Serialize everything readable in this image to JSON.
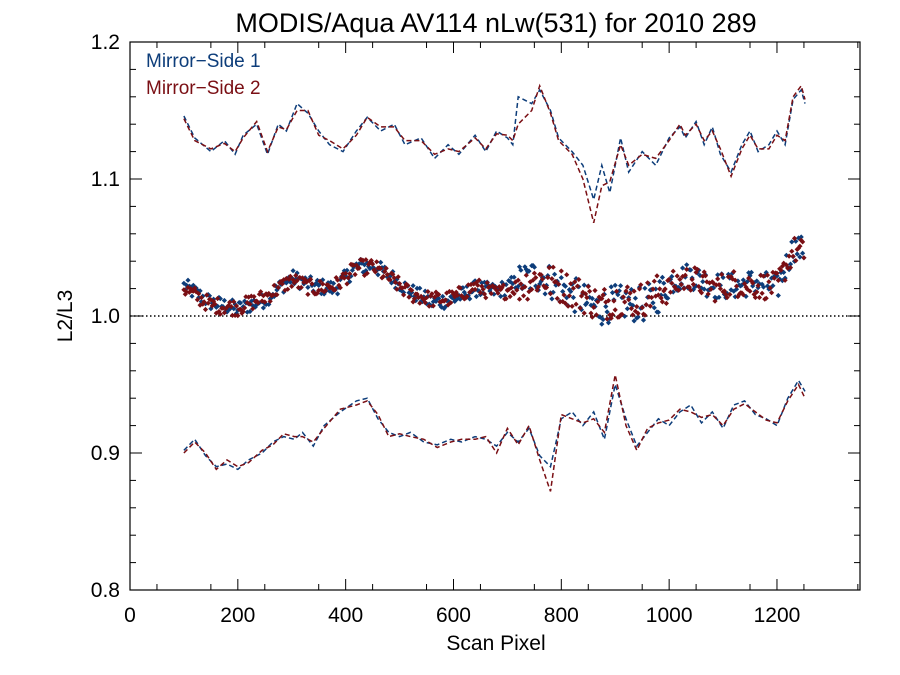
{
  "chart_data": {
    "type": "scatter",
    "title": "MODIS/Aqua AV114 nLw(531) for 2010 289",
    "xlabel": "Scan Pixel",
    "ylabel": "L2/L3",
    "xlim": [
      0,
      1354
    ],
    "ylim": [
      0.8,
      1.2
    ],
    "x_ticks": [
      "0",
      "200",
      "400",
      "600",
      "800",
      "1000",
      "1200"
    ],
    "y_ticks": [
      "0.8",
      "0.9",
      "1.0",
      "1.1",
      "1.2"
    ],
    "reference_line": 1.0,
    "legend_position": "top-left",
    "series": [
      {
        "name": "Mirror−Side 1",
        "color": "#0d3d7a",
        "mean": [
          [
            100,
            1.022
          ],
          [
            150,
            1.01
          ],
          [
            200,
            1.005
          ],
          [
            250,
            1.012
          ],
          [
            300,
            1.028
          ],
          [
            340,
            1.022
          ],
          [
            380,
            1.02
          ],
          [
            420,
            1.036
          ],
          [
            450,
            1.037
          ],
          [
            480,
            1.03
          ],
          [
            520,
            1.018
          ],
          [
            560,
            1.01
          ],
          [
            600,
            1.012
          ],
          [
            640,
            1.02
          ],
          [
            680,
            1.018
          ],
          [
            720,
            1.025
          ],
          [
            760,
            1.03
          ],
          [
            800,
            1.02
          ],
          [
            840,
            1.012
          ],
          [
            870,
            1.005
          ],
          [
            900,
            1.01
          ],
          [
            950,
            1.008
          ],
          [
            980,
            1.015
          ],
          [
            1000,
            1.025
          ],
          [
            1040,
            1.03
          ],
          [
            1080,
            1.022
          ],
          [
            1120,
            1.022
          ],
          [
            1160,
            1.025
          ],
          [
            1200,
            1.02
          ],
          [
            1230,
            1.05
          ],
          [
            1250,
            1.048
          ]
        ],
        "upper": [
          [
            100,
            1.146
          ],
          [
            120,
            1.13
          ],
          [
            150,
            1.12
          ],
          [
            175,
            1.128
          ],
          [
            195,
            1.118
          ],
          [
            210,
            1.132
          ],
          [
            235,
            1.14
          ],
          [
            255,
            1.118
          ],
          [
            275,
            1.14
          ],
          [
            290,
            1.135
          ],
          [
            310,
            1.155
          ],
          [
            330,
            1.148
          ],
          [
            350,
            1.135
          ],
          [
            370,
            1.125
          ],
          [
            395,
            1.12
          ],
          [
            420,
            1.135
          ],
          [
            440,
            1.145
          ],
          [
            465,
            1.135
          ],
          [
            490,
            1.14
          ],
          [
            510,
            1.125
          ],
          [
            540,
            1.13
          ],
          [
            565,
            1.115
          ],
          [
            590,
            1.125
          ],
          [
            610,
            1.118
          ],
          [
            640,
            1.132
          ],
          [
            660,
            1.12
          ],
          [
            680,
            1.135
          ],
          [
            700,
            1.13
          ],
          [
            710,
            1.125
          ],
          [
            720,
            1.16
          ],
          [
            745,
            1.155
          ],
          [
            760,
            1.165
          ],
          [
            780,
            1.15
          ],
          [
            795,
            1.13
          ],
          [
            820,
            1.12
          ],
          [
            840,
            1.11
          ],
          [
            860,
            1.085
          ],
          [
            875,
            1.11
          ],
          [
            890,
            1.09
          ],
          [
            910,
            1.13
          ],
          [
            925,
            1.105
          ],
          [
            950,
            1.12
          ],
          [
            975,
            1.11
          ],
          [
            1000,
            1.13
          ],
          [
            1020,
            1.138
          ],
          [
            1030,
            1.13
          ],
          [
            1050,
            1.142
          ],
          [
            1065,
            1.125
          ],
          [
            1080,
            1.138
          ],
          [
            1095,
            1.118
          ],
          [
            1115,
            1.105
          ],
          [
            1135,
            1.125
          ],
          [
            1150,
            1.135
          ],
          [
            1165,
            1.12
          ],
          [
            1185,
            1.125
          ],
          [
            1200,
            1.135
          ],
          [
            1215,
            1.125
          ],
          [
            1230,
            1.158
          ],
          [
            1245,
            1.165
          ],
          [
            1252,
            1.155
          ]
        ],
        "lower": [
          [
            100,
            0.902
          ],
          [
            120,
            0.91
          ],
          [
            140,
            0.898
          ],
          [
            160,
            0.89
          ],
          [
            180,
            0.892
          ],
          [
            200,
            0.888
          ],
          [
            220,
            0.895
          ],
          [
            245,
            0.9
          ],
          [
            265,
            0.908
          ],
          [
            285,
            0.912
          ],
          [
            305,
            0.91
          ],
          [
            320,
            0.915
          ],
          [
            340,
            0.905
          ],
          [
            360,
            0.92
          ],
          [
            390,
            0.93
          ],
          [
            420,
            0.938
          ],
          [
            440,
            0.94
          ],
          [
            460,
            0.925
          ],
          [
            480,
            0.915
          ],
          [
            500,
            0.912
          ],
          [
            520,
            0.915
          ],
          [
            545,
            0.908
          ],
          [
            570,
            0.906
          ],
          [
            595,
            0.91
          ],
          [
            615,
            0.908
          ],
          [
            640,
            0.912
          ],
          [
            660,
            0.91
          ],
          [
            680,
            0.905
          ],
          [
            700,
            0.915
          ],
          [
            720,
            0.908
          ],
          [
            740,
            0.918
          ],
          [
            760,
            0.898
          ],
          [
            780,
            0.89
          ],
          [
            800,
            0.925
          ],
          [
            820,
            0.93
          ],
          [
            840,
            0.92
          ],
          [
            860,
            0.93
          ],
          [
            880,
            0.91
          ],
          [
            900,
            0.95
          ],
          [
            920,
            0.925
          ],
          [
            940,
            0.905
          ],
          [
            960,
            0.915
          ],
          [
            980,
            0.925
          ],
          [
            1000,
            0.92
          ],
          [
            1020,
            0.93
          ],
          [
            1040,
            0.935
          ],
          [
            1060,
            0.922
          ],
          [
            1080,
            0.93
          ],
          [
            1100,
            0.918
          ],
          [
            1120,
            0.935
          ],
          [
            1140,
            0.938
          ],
          [
            1160,
            0.928
          ],
          [
            1180,
            0.925
          ],
          [
            1200,
            0.92
          ],
          [
            1220,
            0.94
          ],
          [
            1240,
            0.953
          ],
          [
            1252,
            0.945
          ]
        ]
      },
      {
        "name": "Mirror−Side 2",
        "color": "#7a0f14",
        "mean": [
          [
            100,
            1.02
          ],
          [
            150,
            1.008
          ],
          [
            200,
            1.006
          ],
          [
            250,
            1.014
          ],
          [
            300,
            1.026
          ],
          [
            340,
            1.02
          ],
          [
            380,
            1.022
          ],
          [
            420,
            1.035
          ],
          [
            450,
            1.036
          ],
          [
            480,
            1.028
          ],
          [
            520,
            1.016
          ],
          [
            560,
            1.012
          ],
          [
            600,
            1.013
          ],
          [
            640,
            1.022
          ],
          [
            680,
            1.016
          ],
          [
            720,
            1.022
          ],
          [
            760,
            1.028
          ],
          [
            800,
            1.022
          ],
          [
            840,
            1.015
          ],
          [
            870,
            1.008
          ],
          [
            900,
            1.012
          ],
          [
            950,
            1.012
          ],
          [
            980,
            1.018
          ],
          [
            1000,
            1.022
          ],
          [
            1040,
            1.028
          ],
          [
            1080,
            1.02
          ],
          [
            1120,
            1.024
          ],
          [
            1160,
            1.022
          ],
          [
            1200,
            1.022
          ],
          [
            1230,
            1.048
          ],
          [
            1250,
            1.046
          ]
        ],
        "upper": [
          [
            100,
            1.144
          ],
          [
            120,
            1.128
          ],
          [
            150,
            1.122
          ],
          [
            175,
            1.126
          ],
          [
            195,
            1.12
          ],
          [
            210,
            1.13
          ],
          [
            235,
            1.142
          ],
          [
            255,
            1.12
          ],
          [
            275,
            1.138
          ],
          [
            290,
            1.136
          ],
          [
            310,
            1.15
          ],
          [
            330,
            1.15
          ],
          [
            350,
            1.132
          ],
          [
            370,
            1.128
          ],
          [
            395,
            1.122
          ],
          [
            420,
            1.132
          ],
          [
            440,
            1.145
          ],
          [
            465,
            1.138
          ],
          [
            490,
            1.138
          ],
          [
            510,
            1.128
          ],
          [
            540,
            1.128
          ],
          [
            565,
            1.118
          ],
          [
            590,
            1.122
          ],
          [
            610,
            1.12
          ],
          [
            640,
            1.13
          ],
          [
            660,
            1.122
          ],
          [
            680,
            1.133
          ],
          [
            700,
            1.132
          ],
          [
            710,
            1.128
          ],
          [
            720,
            1.14
          ],
          [
            745,
            1.15
          ],
          [
            760,
            1.168
          ],
          [
            780,
            1.148
          ],
          [
            795,
            1.128
          ],
          [
            820,
            1.118
          ],
          [
            840,
            1.1
          ],
          [
            860,
            1.068
          ],
          [
            875,
            1.095
          ],
          [
            890,
            1.098
          ],
          [
            910,
            1.125
          ],
          [
            925,
            1.11
          ],
          [
            950,
            1.118
          ],
          [
            975,
            1.115
          ],
          [
            1000,
            1.128
          ],
          [
            1020,
            1.14
          ],
          [
            1030,
            1.132
          ],
          [
            1050,
            1.14
          ],
          [
            1065,
            1.128
          ],
          [
            1080,
            1.135
          ],
          [
            1095,
            1.122
          ],
          [
            1115,
            1.102
          ],
          [
            1135,
            1.122
          ],
          [
            1150,
            1.132
          ],
          [
            1165,
            1.122
          ],
          [
            1185,
            1.122
          ],
          [
            1200,
            1.132
          ],
          [
            1215,
            1.128
          ],
          [
            1230,
            1.16
          ],
          [
            1245,
            1.168
          ],
          [
            1252,
            1.158
          ]
        ],
        "lower": [
          [
            100,
            0.9
          ],
          [
            120,
            0.908
          ],
          [
            140,
            0.9
          ],
          [
            160,
            0.888
          ],
          [
            180,
            0.895
          ],
          [
            200,
            0.89
          ],
          [
            220,
            0.893
          ],
          [
            245,
            0.902
          ],
          [
            265,
            0.906
          ],
          [
            285,
            0.914
          ],
          [
            305,
            0.912
          ],
          [
            320,
            0.912
          ],
          [
            340,
            0.908
          ],
          [
            360,
            0.918
          ],
          [
            390,
            0.932
          ],
          [
            420,
            0.935
          ],
          [
            440,
            0.938
          ],
          [
            460,
            0.928
          ],
          [
            480,
            0.912
          ],
          [
            500,
            0.914
          ],
          [
            520,
            0.912
          ],
          [
            545,
            0.91
          ],
          [
            570,
            0.904
          ],
          [
            595,
            0.908
          ],
          [
            615,
            0.91
          ],
          [
            640,
            0.91
          ],
          [
            660,
            0.912
          ],
          [
            680,
            0.9
          ],
          [
            700,
            0.918
          ],
          [
            720,
            0.906
          ],
          [
            740,
            0.92
          ],
          [
            760,
            0.895
          ],
          [
            780,
            0.872
          ],
          [
            800,
            0.928
          ],
          [
            820,
            0.925
          ],
          [
            840,
            0.922
          ],
          [
            860,
            0.925
          ],
          [
            880,
            0.915
          ],
          [
            900,
            0.957
          ],
          [
            920,
            0.92
          ],
          [
            940,
            0.902
          ],
          [
            960,
            0.918
          ],
          [
            980,
            0.922
          ],
          [
            1000,
            0.924
          ],
          [
            1020,
            0.932
          ],
          [
            1040,
            0.93
          ],
          [
            1060,
            0.926
          ],
          [
            1080,
            0.928
          ],
          [
            1100,
            0.92
          ],
          [
            1120,
            0.932
          ],
          [
            1140,
            0.936
          ],
          [
            1160,
            0.93
          ],
          [
            1180,
            0.924
          ],
          [
            1200,
            0.922
          ],
          [
            1220,
            0.938
          ],
          [
            1240,
            0.95
          ],
          [
            1252,
            0.94
          ]
        ]
      }
    ]
  }
}
